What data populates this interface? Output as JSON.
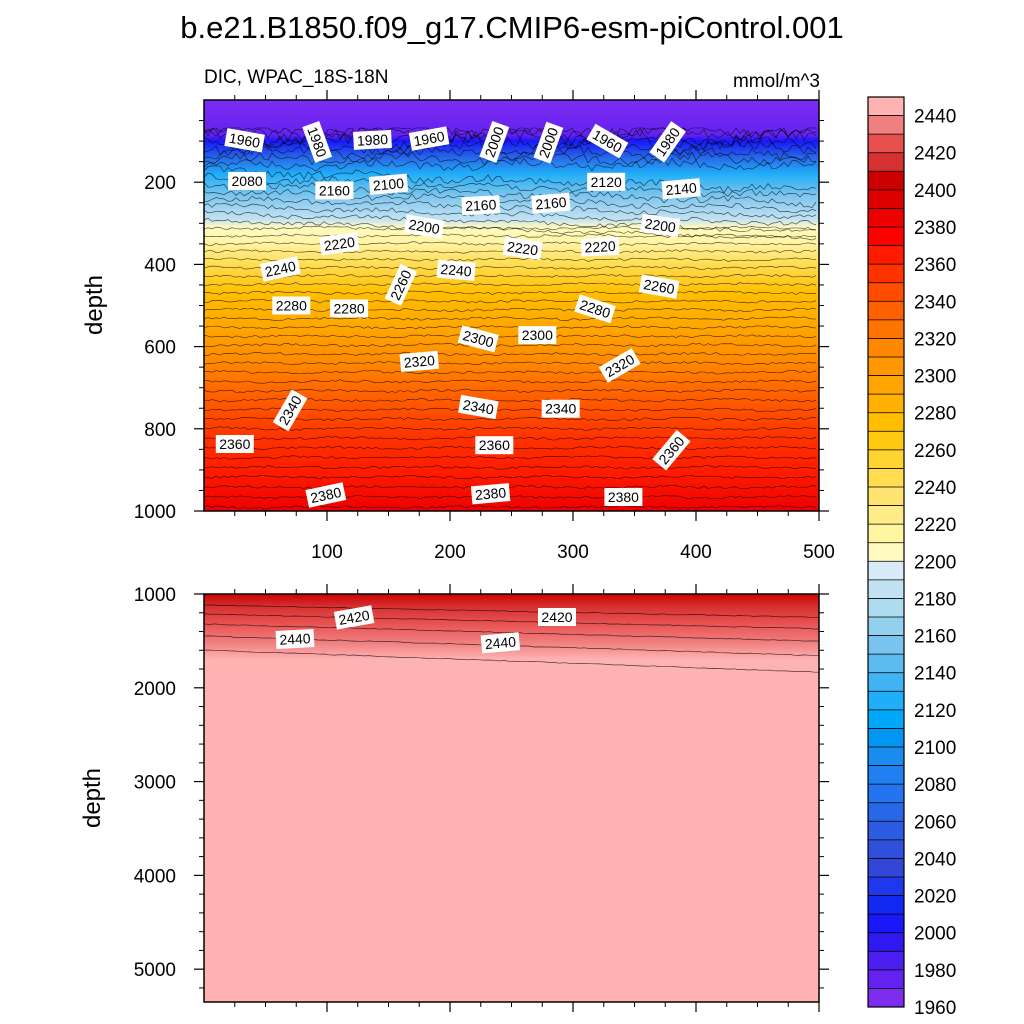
{
  "title": "b.e21.B1850.f09_g17.CMIP6-esm-piControl.001",
  "subtitle_left": "DIC, WPAC_18S-18N",
  "subtitle_right": "mmol/m^3",
  "chart_data": [
    {
      "type": "heatmap",
      "name": "upper-panel",
      "ylabel": "depth",
      "xlim": [
        0,
        500
      ],
      "ylim": [
        1000,
        0
      ],
      "x_ticks": [
        "100",
        "200",
        "300",
        "400",
        "500"
      ],
      "y_ticks": [
        "200",
        "400",
        "600",
        "800",
        "1000"
      ],
      "contour_labels": [
        {
          "text": "1960",
          "x": 33,
          "y": 98,
          "angle": 10
        },
        {
          "text": "1980",
          "x": 92,
          "y": 102,
          "angle": 70
        },
        {
          "text": "1980",
          "x": 137,
          "y": 97,
          "angle": -3
        },
        {
          "text": "1960",
          "x": 183,
          "y": 94,
          "angle": -10
        },
        {
          "text": "2000",
          "x": 236,
          "y": 102,
          "angle": -70
        },
        {
          "text": "2000",
          "x": 280,
          "y": 104,
          "angle": -70
        },
        {
          "text": "1960",
          "x": 328,
          "y": 100,
          "angle": 30
        },
        {
          "text": "1980",
          "x": 377,
          "y": 102,
          "angle": -55
        },
        {
          "text": "2080",
          "x": 35,
          "y": 197,
          "angle": 0
        },
        {
          "text": "2160",
          "x": 106,
          "y": 220,
          "angle": 0
        },
        {
          "text": "2100",
          "x": 150,
          "y": 205,
          "angle": -5
        },
        {
          "text": "2160",
          "x": 225,
          "y": 256,
          "angle": -3
        },
        {
          "text": "2160",
          "x": 282,
          "y": 251,
          "angle": -5
        },
        {
          "text": "2120",
          "x": 327,
          "y": 199,
          "angle": 0
        },
        {
          "text": "2140",
          "x": 388,
          "y": 216,
          "angle": -5
        },
        {
          "text": "2200",
          "x": 179,
          "y": 308,
          "angle": 10
        },
        {
          "text": "2220",
          "x": 110,
          "y": 350,
          "angle": -8
        },
        {
          "text": "2220",
          "x": 259,
          "y": 361,
          "angle": 8
        },
        {
          "text": "2220",
          "x": 322,
          "y": 357,
          "angle": -3
        },
        {
          "text": "2200",
          "x": 371,
          "y": 305,
          "angle": 8
        },
        {
          "text": "2240",
          "x": 62,
          "y": 411,
          "angle": -12
        },
        {
          "text": "2260",
          "x": 160,
          "y": 450,
          "angle": -65
        },
        {
          "text": "2240",
          "x": 205,
          "y": 414,
          "angle": 5
        },
        {
          "text": "2260",
          "x": 370,
          "y": 454,
          "angle": 10
        },
        {
          "text": "2280",
          "x": 71,
          "y": 500,
          "angle": 0
        },
        {
          "text": "2280",
          "x": 118,
          "y": 507,
          "angle": 0
        },
        {
          "text": "2280",
          "x": 318,
          "y": 508,
          "angle": 18
        },
        {
          "text": "2300",
          "x": 223,
          "y": 581,
          "angle": 15
        },
        {
          "text": "2300",
          "x": 271,
          "y": 572,
          "angle": 0
        },
        {
          "text": "2320",
          "x": 175,
          "y": 636,
          "angle": -5
        },
        {
          "text": "2320",
          "x": 338,
          "y": 646,
          "angle": -30
        },
        {
          "text": "2340",
          "x": 70,
          "y": 755,
          "angle": -60
        },
        {
          "text": "2340",
          "x": 223,
          "y": 747,
          "angle": 10
        },
        {
          "text": "2340",
          "x": 290,
          "y": 751,
          "angle": 0
        },
        {
          "text": "2360",
          "x": 25,
          "y": 837,
          "angle": 0
        },
        {
          "text": "2360",
          "x": 236,
          "y": 840,
          "angle": 0
        },
        {
          "text": "2360",
          "x": 380,
          "y": 852,
          "angle": -50
        },
        {
          "text": "2380",
          "x": 99,
          "y": 961,
          "angle": -12
        },
        {
          "text": "2380",
          "x": 233,
          "y": 958,
          "angle": -5
        },
        {
          "text": "2380",
          "x": 341,
          "y": 966,
          "angle": 0
        }
      ]
    },
    {
      "type": "heatmap",
      "name": "lower-panel",
      "ylabel": "depth",
      "xlim": [
        0,
        500
      ],
      "ylim": [
        5350,
        1000
      ],
      "y_ticks": [
        "1000",
        "2000",
        "3000",
        "4000",
        "5000"
      ],
      "contour_labels": [
        {
          "text": "2420",
          "x": 122,
          "y": 1250,
          "angle": -10
        },
        {
          "text": "2420",
          "x": 287,
          "y": 1245,
          "angle": 0
        },
        {
          "text": "2440",
          "x": 74,
          "y": 1480,
          "angle": -3
        },
        {
          "text": "2440",
          "x": 241,
          "y": 1520,
          "angle": -5
        }
      ]
    }
  ],
  "colorbar": {
    "labels": [
      "2440",
      "2420",
      "2400",
      "2380",
      "2360",
      "2340",
      "2320",
      "2300",
      "2280",
      "2260",
      "2240",
      "2220",
      "2200",
      "2180",
      "2160",
      "2140",
      "2120",
      "2100",
      "2080",
      "2060",
      "2040",
      "2020",
      "2000",
      "1980",
      "1960"
    ],
    "colors": [
      "#ffb2b2",
      "#f08080",
      "#e85050",
      "#d63030",
      "#cc0000",
      "#dd0000",
      "#ee0000",
      "#ff0000",
      "#ff1a00",
      "#ff3300",
      "#ff4c00",
      "#ff6000",
      "#ff7400",
      "#ff8800",
      "#ff9800",
      "#ffa400",
      "#ffb000",
      "#ffbe00",
      "#ffca10",
      "#ffd430",
      "#ffdc50",
      "#ffe470",
      "#ffec88",
      "#fff4a0",
      "#fffbc0",
      "#d8ecf8",
      "#c2e2f4",
      "#addcf0",
      "#92d0ee",
      "#78c4ee",
      "#5cbcf0",
      "#40b4f4",
      "#20aef8",
      "#00a8f8",
      "#0096f2",
      "#1a8cf0",
      "#2080f0",
      "#2474f0",
      "#2868e8",
      "#2c5ce4",
      "#3050dc",
      "#3446d8",
      "#2038ec",
      "#1028f0",
      "#1818f8",
      "#3018f0",
      "#4c1ef0",
      "#6422f0",
      "#7e2cf0"
    ]
  }
}
